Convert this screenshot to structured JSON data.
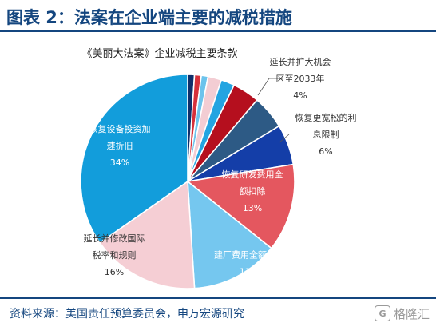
{
  "figure": {
    "title": "图表 2：法案在企业端主要的减税措施",
    "source": "资料来源：美国责任预算委员会，申万宏源研究",
    "watermark": "格隆汇",
    "watermark_badge": "G",
    "title_color": "#14467f"
  },
  "chart_data": {
    "type": "pie",
    "title": "《美丽大法案》企业减税主要条款",
    "start_angle_deg": 0,
    "direction": "clockwise",
    "slices": [
      {
        "value": 1,
        "color": "#0f2f6a"
      },
      {
        "value": 1,
        "color": "#d6303a"
      },
      {
        "value": 1,
        "color": "#6cc3ec"
      },
      {
        "value": 2,
        "color": "#f3cdd3"
      },
      {
        "value": 2,
        "color": "#23a4e1"
      },
      {
        "value": 4,
        "label_lines": [
          "延长并扩大机会",
          "区至2033年",
          "4%"
        ],
        "color": "#b50f1e"
      },
      {
        "value": 5,
        "color": "#2d5a85"
      },
      {
        "value": 6,
        "label_lines": [
          "恢复更宽松的利",
          "息限制",
          "6%"
        ],
        "color": "#143ea8"
      },
      {
        "value": 13,
        "label_lines": [
          "恢复研发费用全",
          "额扣除",
          "13%"
        ],
        "color": "#e4575f"
      },
      {
        "value": 13,
        "label_lines": [
          "建厂费用全额扣除",
          "13%"
        ],
        "color": "#75c7ef"
      },
      {
        "value": 16,
        "label_lines": [
          "延长并修改国际",
          "税率和规则",
          "16%"
        ],
        "color": "#f5ced4"
      },
      {
        "value": 34,
        "label_lines": [
          "恢复设备投资加",
          "速折旧",
          "34%"
        ],
        "color": "#129ddb"
      }
    ]
  }
}
